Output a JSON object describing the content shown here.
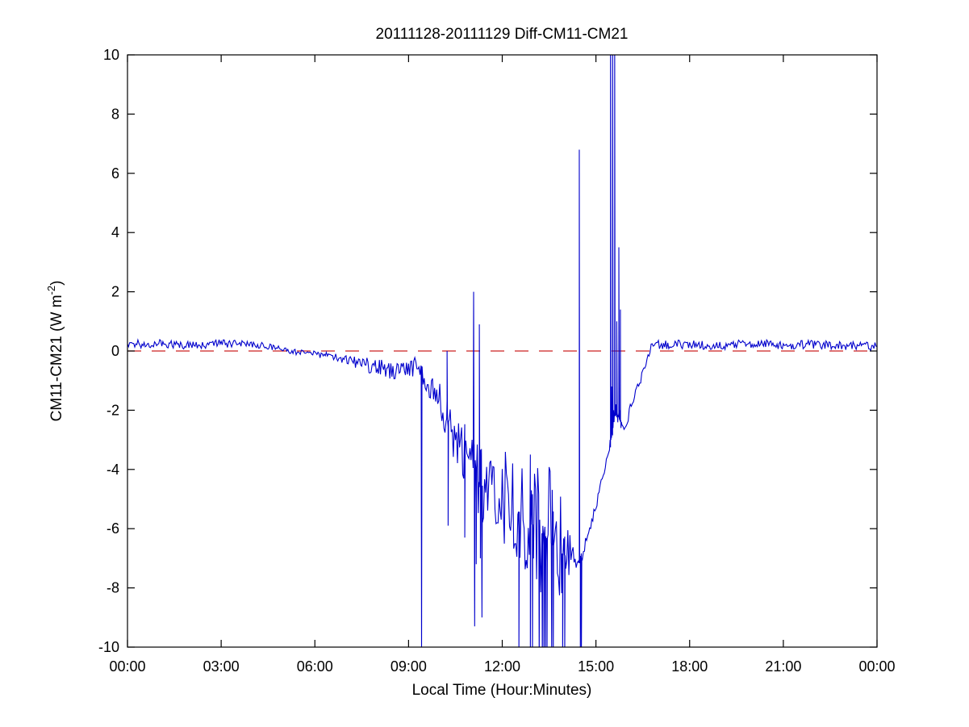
{
  "figure": {
    "title": "20111128-20111129 Diff-CM11-CM21",
    "xlabel": "Local Time (Hour:Minutes)",
    "ylabel_main": "CM11-CM21 (W m",
    "ylabel_exp": "-2",
    "ylabel_close": ")"
  },
  "chart_data": {
    "type": "line",
    "title": "20111128-20111129 Diff-CM11-CM21",
    "xlabel": "Local Time (Hour:Minutes)",
    "ylabel": "CM11-CM21 (W m^-2)",
    "grid": false,
    "legend": null,
    "xlim_minutes": [
      0,
      1440
    ],
    "ylim": [
      -10,
      10
    ],
    "xticks": [
      {
        "minute": 0,
        "label": "00:00"
      },
      {
        "minute": 180,
        "label": "03:00"
      },
      {
        "minute": 360,
        "label": "06:00"
      },
      {
        "minute": 540,
        "label": "09:00"
      },
      {
        "minute": 720,
        "label": "12:00"
      },
      {
        "minute": 900,
        "label": "15:00"
      },
      {
        "minute": 1080,
        "label": "18:00"
      },
      {
        "minute": 1260,
        "label": "21:00"
      },
      {
        "minute": 1440,
        "label": "00:00"
      }
    ],
    "yticks": [
      -10,
      -8,
      -6,
      -4,
      -2,
      0,
      2,
      4,
      6,
      8,
      10
    ],
    "zero_reference_line": {
      "y": 0,
      "style": "dashed",
      "color": "#cc2222"
    },
    "series": [
      {
        "name": "Diff CM11-CM21",
        "color": "#0000cc",
        "sample_step_minutes": 2,
        "clip_to_axes": true,
        "baseline_keyframes": [
          [
            0,
            0.22
          ],
          [
            60,
            0.25
          ],
          [
            120,
            0.2
          ],
          [
            180,
            0.25
          ],
          [
            240,
            0.22
          ],
          [
            285,
            0.12
          ],
          [
            300,
            0.02
          ],
          [
            330,
            -0.05
          ],
          [
            360,
            -0.1
          ],
          [
            390,
            -0.18
          ],
          [
            420,
            -0.3
          ],
          [
            450,
            -0.42
          ],
          [
            480,
            -0.55
          ],
          [
            510,
            -0.68
          ],
          [
            540,
            -0.6
          ],
          [
            558,
            -0.5
          ],
          [
            565,
            -0.55
          ],
          [
            572,
            -1.1
          ],
          [
            585,
            -1.3
          ],
          [
            600,
            -1.5
          ],
          [
            612,
            -2.2
          ],
          [
            625,
            -2.8
          ],
          [
            640,
            -3.0
          ],
          [
            655,
            -3.3
          ],
          [
            668,
            -3.8
          ],
          [
            678,
            -4.6
          ],
          [
            690,
            -4.4
          ],
          [
            705,
            -4.7
          ],
          [
            720,
            -4.8
          ],
          [
            735,
            -5.2
          ],
          [
            750,
            -5.4
          ],
          [
            765,
            -5.6
          ],
          [
            780,
            -5.9
          ],
          [
            800,
            -6.2
          ],
          [
            820,
            -6.6
          ],
          [
            840,
            -6.9
          ],
          [
            850,
            -6.8
          ],
          [
            858,
            -7.0
          ],
          [
            866,
            -7.25
          ],
          [
            874,
            -6.9
          ],
          [
            880,
            -6.5
          ],
          [
            890,
            -5.9
          ],
          [
            900,
            -5.2
          ],
          [
            910,
            -4.5
          ],
          [
            918,
            -3.8
          ],
          [
            926,
            -3.2
          ],
          [
            938,
            -2.0
          ],
          [
            948,
            -2.4
          ],
          [
            956,
            -2.6
          ],
          [
            970,
            -1.7
          ],
          [
            985,
            -1.0
          ],
          [
            998,
            -0.3
          ],
          [
            1006,
            0.1
          ],
          [
            1015,
            0.22
          ],
          [
            1080,
            0.22
          ],
          [
            1140,
            0.18
          ],
          [
            1200,
            0.25
          ],
          [
            1260,
            0.2
          ],
          [
            1320,
            0.22
          ],
          [
            1380,
            0.18
          ],
          [
            1440,
            0.15
          ]
        ],
        "noise_amplitude_keyframes": [
          [
            0,
            0.15
          ],
          [
            270,
            0.13
          ],
          [
            300,
            0.1
          ],
          [
            360,
            0.1
          ],
          [
            420,
            0.15
          ],
          [
            450,
            0.22
          ],
          [
            480,
            0.3
          ],
          [
            540,
            0.3
          ],
          [
            570,
            0.35
          ],
          [
            600,
            0.5
          ],
          [
            615,
            1.0
          ],
          [
            660,
            1.3
          ],
          [
            680,
            1.5
          ],
          [
            690,
            1.1
          ],
          [
            720,
            1.6
          ],
          [
            740,
            1.8
          ],
          [
            780,
            2.4
          ],
          [
            820,
            2.8
          ],
          [
            845,
            1.5
          ],
          [
            852,
            0.4
          ],
          [
            860,
            0.25
          ],
          [
            875,
            0.2
          ],
          [
            920,
            0.15
          ],
          [
            926,
            0.3
          ],
          [
            948,
            0.3
          ],
          [
            955,
            0.2
          ],
          [
            1000,
            0.12
          ],
          [
            1010,
            0.15
          ],
          [
            1440,
            0.15
          ]
        ],
        "spikes": [
          [
            565,
            -10.5
          ],
          [
            614,
            0.0
          ],
          [
            616,
            -5.9
          ],
          [
            648,
            -6.3
          ],
          [
            665,
            2.0
          ],
          [
            667,
            -9.3
          ],
          [
            670,
            -7.2
          ],
          [
            676,
            0.9
          ],
          [
            678,
            -7.0
          ],
          [
            681,
            -9.0
          ],
          [
            752,
            -10.5
          ],
          [
            774,
            -10.5
          ],
          [
            778,
            -10.5
          ],
          [
            791,
            -10.5
          ],
          [
            797,
            -10.5
          ],
          [
            800,
            -10.5
          ],
          [
            803,
            -10.5
          ],
          [
            806,
            -10.5
          ],
          [
            815,
            -10.5
          ],
          [
            818,
            -10.5
          ],
          [
            836,
            -10.5
          ],
          [
            840,
            -10.5
          ],
          [
            868,
            6.8
          ],
          [
            870,
            -10.5
          ],
          [
            872,
            -10.5
          ],
          [
            928,
            10.5
          ],
          [
            930,
            -1.2
          ],
          [
            932,
            10.5
          ],
          [
            934,
            -2.0
          ],
          [
            936,
            10.5
          ],
          [
            938,
            -1.8
          ],
          [
            940,
            1.0
          ],
          [
            942,
            -2.2
          ],
          [
            944,
            3.5
          ],
          [
            946,
            -2.0
          ],
          [
            947,
            1.4
          ],
          [
            948,
            -2.6
          ]
        ]
      }
    ]
  }
}
